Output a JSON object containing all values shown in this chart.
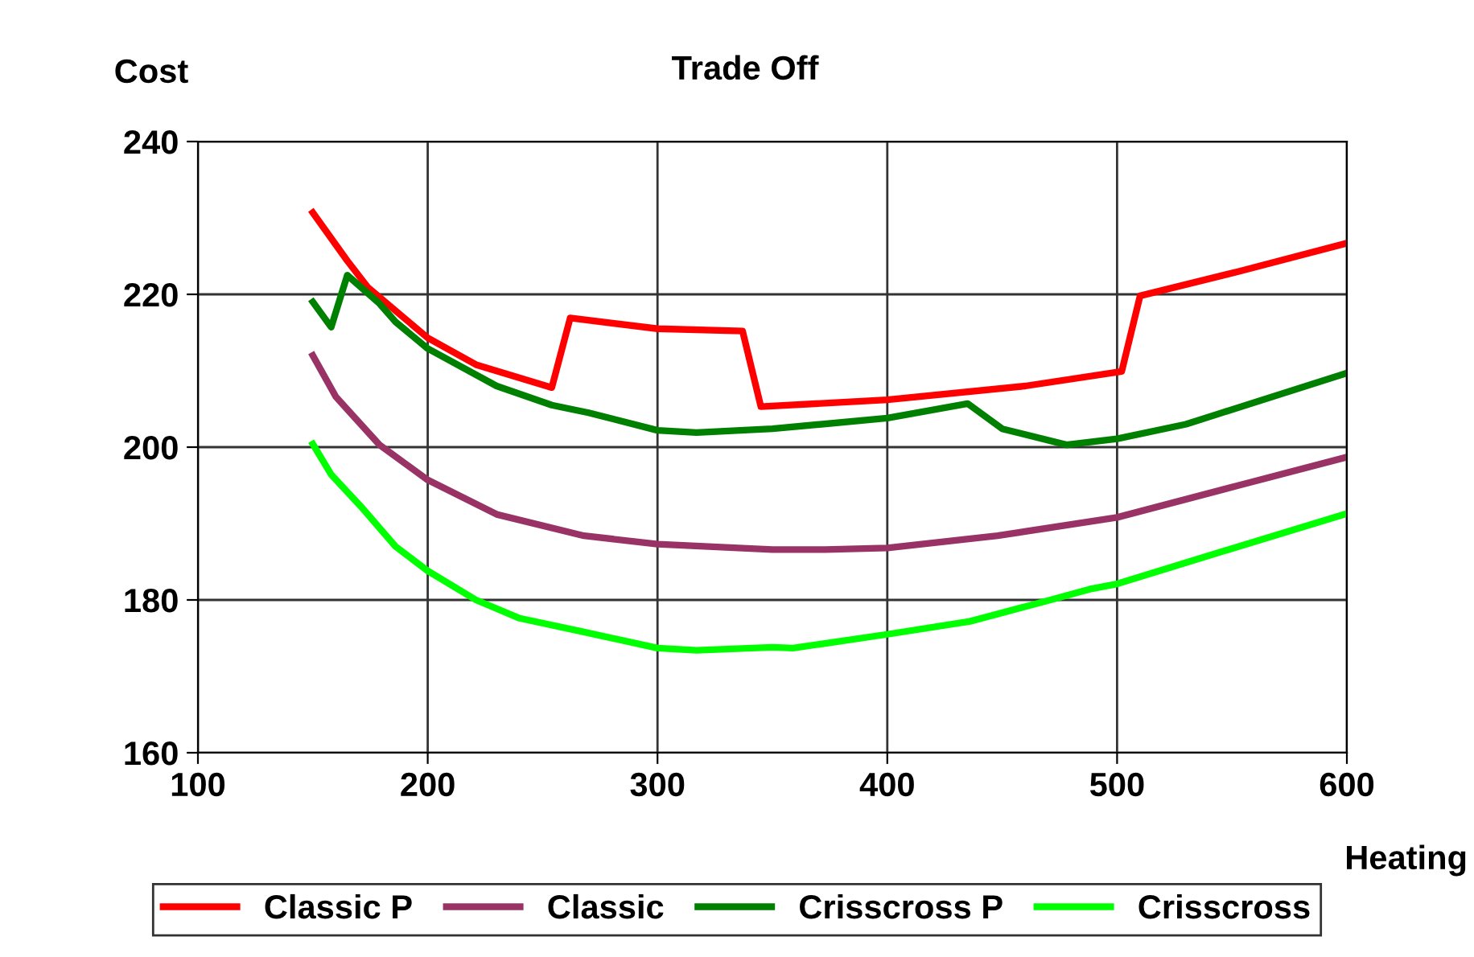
{
  "chart_data": {
    "type": "line",
    "title": "Trade Off",
    "xlabel": "Heating",
    "ylabel": "Cost",
    "xlim": [
      100,
      600
    ],
    "xticks": [
      100,
      200,
      300,
      400,
      500,
      600
    ],
    "ylim": [
      160,
      240
    ],
    "yticks": [
      160,
      180,
      200,
      220,
      240
    ],
    "grid": true,
    "legend": "bottom",
    "marker": "none",
    "line_style": "solid",
    "series": [
      {
        "name": "Classic P",
        "color": "#ff0000",
        "x": [
          150,
          165,
          174,
          200,
          221,
          254,
          262,
          300,
          337,
          345,
          400,
          460,
          502,
          510,
          553,
          600
        ],
        "values": [
          230.7,
          224.4,
          220.9,
          214.3,
          210.8,
          207.8,
          216.9,
          215.5,
          215.2,
          205.3,
          206.2,
          208.0,
          209.9,
          219.8,
          223.0,
          226.7
        ]
      },
      {
        "name": "Classic",
        "color": "#993366",
        "x": [
          150,
          160,
          179,
          200,
          230,
          268,
          300,
          350,
          373,
          400,
          448,
          500,
          553,
          600
        ],
        "values": [
          212.0,
          206.6,
          200.3,
          195.7,
          191.2,
          188.4,
          187.3,
          186.6,
          186.6,
          186.8,
          188.4,
          190.8,
          195.0,
          198.7
        ]
      },
      {
        "name": "Crisscross P",
        "color": "#008000",
        "x": [
          150,
          158,
          165,
          179,
          186,
          200,
          230,
          254,
          270,
          300,
          317,
          350,
          400,
          435,
          450,
          478,
          500,
          530,
          600
        ],
        "values": [
          219.0,
          215.7,
          222.5,
          218.8,
          216.4,
          212.9,
          208.0,
          205.5,
          204.5,
          202.2,
          201.9,
          202.4,
          203.8,
          205.7,
          202.4,
          200.3,
          201.1,
          203.0,
          209.7
        ]
      },
      {
        "name": "Crisscross",
        "color": "#00ff00",
        "x": [
          150,
          158,
          171,
          186,
          200,
          221,
          240,
          268,
          300,
          317,
          350,
          359,
          400,
          436,
          471,
          488,
          500,
          553,
          600
        ],
        "values": [
          200.4,
          196.4,
          192.2,
          187.0,
          183.8,
          180.0,
          177.6,
          175.8,
          173.7,
          173.4,
          173.8,
          173.7,
          175.5,
          177.2,
          180.0,
          181.4,
          182.1,
          187.0,
          191.3
        ]
      }
    ]
  }
}
